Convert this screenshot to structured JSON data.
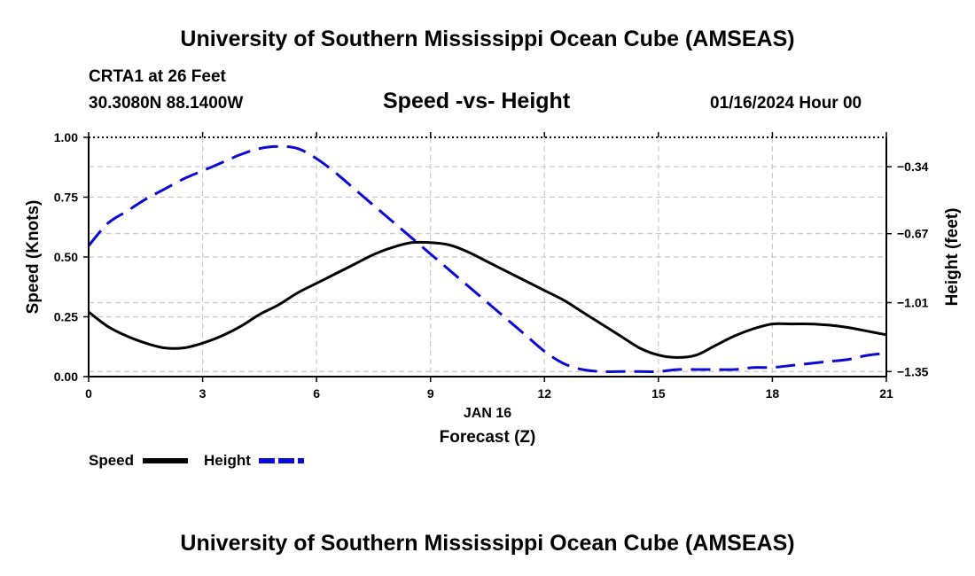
{
  "header": {
    "title": "University of Southern Mississippi Ocean Cube (AMSEAS)",
    "station": "CRTA1 at 26 Feet",
    "coordinates": "30.3080N  88.1400W",
    "date": "01/16/2024 Hour 00"
  },
  "footer": {
    "title": "University of Southern Mississippi Ocean Cube (AMSEAS)"
  },
  "colors": {
    "speed": "#000000",
    "height": "#0a0ad2",
    "grid": "#c8c8c8"
  },
  "chart_data": {
    "type": "line",
    "title": "Speed -vs- Height",
    "xlabel": "Forecast (Z)",
    "xsublabel": "JAN 16",
    "ylabel": "Speed (Knots)",
    "y2label": "Height (feet)",
    "xlim": [
      0,
      21
    ],
    "ylim": [
      0,
      1
    ],
    "y2lim": [
      -1.375,
      -0.195
    ],
    "x_ticks": [
      "0",
      "3",
      "6",
      "9",
      "12",
      "15",
      "18",
      "21"
    ],
    "y_ticks": [
      "0.00",
      "0.25",
      "0.50",
      "0.75",
      "1.00"
    ],
    "y2_ticks": [
      "-0.34",
      "-0.67",
      "-1.01",
      "-1.35"
    ],
    "grid": true,
    "legend_position": "bottom-left",
    "series": [
      {
        "name": "Speed",
        "axis": "left",
        "style": "solid",
        "x": [
          0,
          0.5,
          1,
          1.5,
          2,
          2.5,
          3,
          3.5,
          4,
          4.5,
          5,
          5.5,
          6,
          6.5,
          7,
          7.5,
          8,
          8.5,
          9,
          9.5,
          10,
          10.5,
          11,
          11.5,
          12,
          12.5,
          13,
          13.5,
          14,
          14.5,
          15,
          15.5,
          16,
          16.5,
          17,
          17.5,
          18,
          18.5,
          19,
          19.5,
          20,
          20.5,
          21
        ],
        "values": [
          0.27,
          0.21,
          0.17,
          0.14,
          0.12,
          0.12,
          0.14,
          0.17,
          0.21,
          0.26,
          0.3,
          0.35,
          0.39,
          0.43,
          0.47,
          0.51,
          0.54,
          0.56,
          0.56,
          0.55,
          0.52,
          0.48,
          0.44,
          0.4,
          0.36,
          0.32,
          0.27,
          0.22,
          0.17,
          0.12,
          0.09,
          0.08,
          0.09,
          0.13,
          0.17,
          0.2,
          0.22,
          0.22,
          0.22,
          0.215,
          0.205,
          0.19,
          0.175
        ]
      },
      {
        "name": "Height",
        "axis": "right",
        "style": "dashed",
        "x": [
          0,
          0.5,
          1,
          1.5,
          2,
          2.5,
          3,
          3.5,
          4,
          4.5,
          5,
          5.5,
          6,
          6.5,
          7,
          7.5,
          8,
          8.5,
          9,
          9.5,
          10,
          10.5,
          11,
          11.5,
          12,
          12.5,
          13,
          13.5,
          14,
          14.5,
          15,
          15.5,
          16,
          16.5,
          17,
          17.5,
          18,
          18.5,
          19,
          19.5,
          20,
          20.5,
          21
        ],
        "values": [
          -0.73,
          -0.62,
          -0.56,
          -0.5,
          -0.45,
          -0.4,
          -0.36,
          -0.32,
          -0.28,
          -0.25,
          -0.24,
          -0.25,
          -0.3,
          -0.37,
          -0.45,
          -0.53,
          -0.61,
          -0.69,
          -0.77,
          -0.85,
          -0.93,
          -1.01,
          -1.09,
          -1.17,
          -1.25,
          -1.31,
          -1.34,
          -1.35,
          -1.35,
          -1.35,
          -1.35,
          -1.34,
          -1.34,
          -1.34,
          -1.34,
          -1.33,
          -1.33,
          -1.32,
          -1.31,
          -1.3,
          -1.29,
          -1.27,
          -1.26
        ]
      }
    ]
  }
}
